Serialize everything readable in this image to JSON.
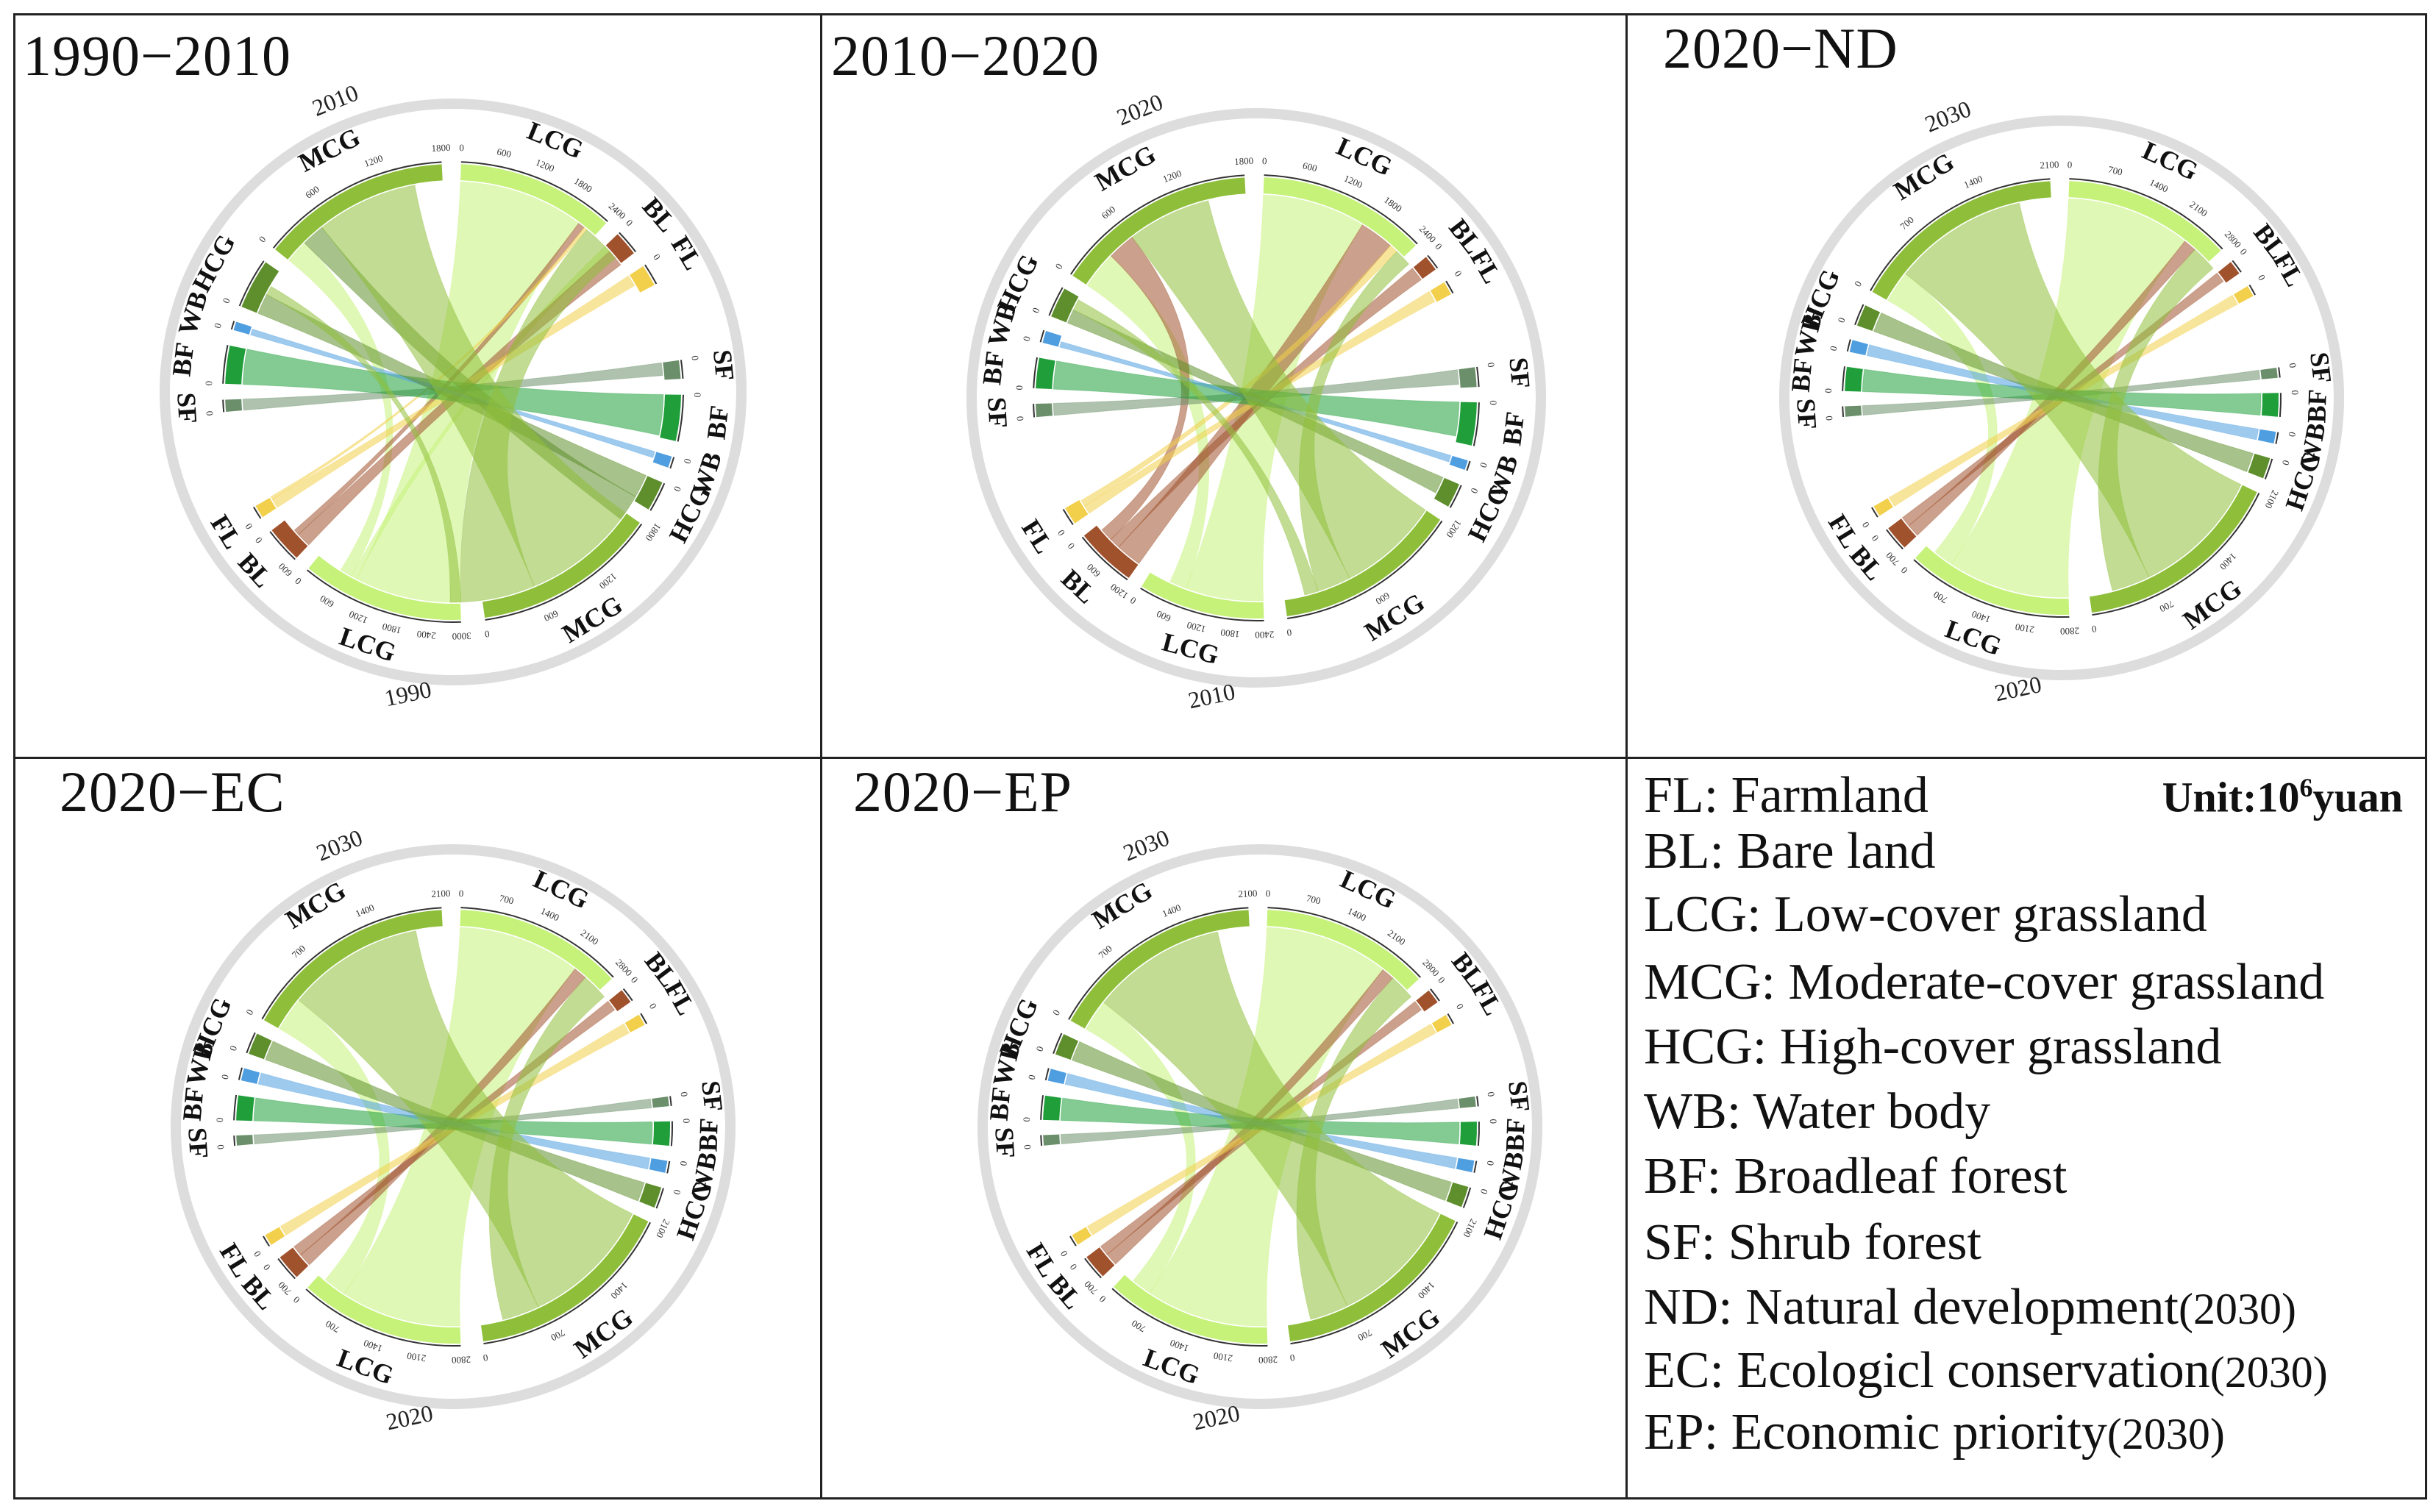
{
  "figure": {
    "unit_prefix": "Unit:10",
    "unit_exp": "6",
    "unit_suffix": "yuan"
  },
  "colors": {
    "FL": "#f2d04b",
    "BL": "#a0522d",
    "LCG": "#c6f27a",
    "MCG": "#8fbf3a",
    "HCG": "#5e8f2c",
    "WB": "#4f9ee0",
    "BF": "#1f9e3a",
    "SF": "#6b8f6a",
    "ring": "#dddddd"
  },
  "legend": [
    {
      "text": "FL: Farmland",
      "year": ""
    },
    {
      "text": "BL: Bare land",
      "year": ""
    },
    {
      "text": "LCG: Low-cover grassland",
      "year": ""
    },
    {
      "text": "MCG: Moderate-cover grassland",
      "year": ""
    },
    {
      "text": "HCG: High-cover grassland",
      "year": ""
    },
    {
      "text": "WB: Water body",
      "year": ""
    },
    {
      "text": "BF: Broadleaf forest",
      "year": ""
    },
    {
      "text": "SF: Shrub forest",
      "year": ""
    },
    {
      "text": "ND: Natural development",
      "year": "(2030)"
    },
    {
      "text": "EC: Ecologicl conservation",
      "year": "(2030)"
    },
    {
      "text": "EP: Economic priority",
      "year": "(2030)"
    }
  ],
  "chart_data": [
    {
      "type": "chord",
      "title": "1990−2010",
      "top_year": "2010",
      "bottom_year": "1990",
      "categories": [
        "LCG",
        "BL",
        "FL",
        "SF",
        "BF",
        "WB",
        "HCG",
        "MCG"
      ],
      "top_order": [
        "LCG",
        "BL",
        "FL",
        "SF",
        "BF",
        "WB",
        "HCG",
        "MCG"
      ],
      "top_values": {
        "LCG": 2550,
        "BL": 400,
        "FL": 350,
        "SF": 120,
        "BF": 380,
        "WB": 80,
        "HCG": 500,
        "MCG": 1900
      },
      "bottom_values": {
        "LCG": 3100,
        "BL": 700,
        "FL": 250,
        "SF": 160,
        "BF": 400,
        "WB": 100,
        "HCG": 260,
        "MCG": 1600
      },
      "top_ticks": {
        "LCG": [
          "0",
          "600",
          "1200",
          "1800",
          "2400"
        ],
        "MCG": [
          "0",
          "600",
          "1200",
          "1800"
        ],
        "BL": [
          "0"
        ],
        "FL": [
          "0"
        ],
        "SF": [
          "0"
        ],
        "BF": [
          "0"
        ],
        "WB": [
          "0"
        ],
        "HCG": [
          "0"
        ]
      },
      "bottom_ticks": {
        "LCG": [
          "3000",
          "2400",
          "1800",
          "1200",
          "600",
          "0"
        ],
        "MCG": [
          "1800",
          "1200",
          "600",
          "0"
        ],
        "BL": [
          "600",
          "0"
        ],
        "FL": [
          "0"
        ],
        "SF": [
          "0"
        ],
        "BF": [
          "0"
        ],
        "WB": [
          "0"
        ],
        "HCG": [
          "0"
        ]
      },
      "flows": [
        {
          "from": "LCG",
          "to": "LCG",
          "value": 2200
        },
        {
          "from": "LCG",
          "to": "BL",
          "value": 120
        },
        {
          "from": "LCG",
          "to": "MCG",
          "value": 250
        },
        {
          "from": "BL",
          "to": "BL",
          "value": 300
        },
        {
          "from": "BL",
          "to": "LCG",
          "value": 120
        },
        {
          "from": "FL",
          "to": "FL",
          "value": 200
        },
        {
          "from": "FL",
          "to": "LCG",
          "value": 60
        },
        {
          "from": "SF",
          "to": "SF",
          "value": 120
        },
        {
          "from": "BF",
          "to": "BF",
          "value": 380
        },
        {
          "from": "WB",
          "to": "WB",
          "value": 60
        },
        {
          "from": "HCG",
          "to": "HCG",
          "value": 220
        },
        {
          "from": "HCG",
          "to": "MCG",
          "value": 250
        },
        {
          "from": "MCG",
          "to": "MCG",
          "value": 1100
        },
        {
          "from": "MCG",
          "to": "LCG",
          "value": 700
        },
        {
          "from": "MCG",
          "to": "HCG",
          "value": 100
        }
      ]
    },
    {
      "type": "chord",
      "title": "2010−2020",
      "top_year": "2020",
      "bottom_year": "2010",
      "categories": [
        "LCG",
        "BL",
        "FL",
        "SF",
        "BF",
        "WB",
        "HCG",
        "MCG"
      ],
      "top_order": [
        "LCG",
        "BL",
        "FL",
        "MCG",
        "HCG",
        "WB",
        "BF",
        "SF"
      ],
      "top_values": {
        "LCG": 2700,
        "BL": 250,
        "FL": 220,
        "SF": 130,
        "BF": 300,
        "WB": 120,
        "HCG": 300,
        "MCG": 2000
      },
      "bottom_values": {
        "LCG": 2700,
        "BL": 1300,
        "FL": 380,
        "SF": 160,
        "BF": 350,
        "WB": 80,
        "HCG": 200,
        "MCG": 1500
      },
      "top_ticks": {
        "LCG": [
          "0",
          "600",
          "1200",
          "1800",
          "2400"
        ],
        "MCG": [
          "0",
          "600",
          "1200",
          "1800"
        ],
        "BL": [
          "0"
        ],
        "FL": [
          "0"
        ],
        "SF": [
          "0"
        ],
        "BF": [
          "0"
        ],
        "WB": [
          "0"
        ],
        "HCG": [
          "0"
        ]
      },
      "bottom_ticks": {
        "LCG": [
          "2400",
          "1800",
          "1200",
          "600",
          "0"
        ],
        "MCG": [
          "1200",
          "600",
          "0"
        ],
        "BL": [
          "1200",
          "600",
          "0"
        ],
        "FL": [
          "0"
        ],
        "SF": [
          "0"
        ],
        "BF": [
          "0"
        ],
        "WB": [
          "0"
        ],
        "HCG": [
          "0"
        ]
      },
      "flows": [
        {
          "from": "LCG",
          "to": "LCG",
          "value": 1800
        },
        {
          "from": "LCG",
          "to": "MCG",
          "value": 400
        },
        {
          "from": "BL",
          "to": "LCG",
          "value": 600
        },
        {
          "from": "BL",
          "to": "BL",
          "value": 250
        },
        {
          "from": "BL",
          "to": "MCG",
          "value": 300
        },
        {
          "from": "FL",
          "to": "FL",
          "value": 200
        },
        {
          "from": "FL",
          "to": "LCG",
          "value": 150
        },
        {
          "from": "SF",
          "to": "SF",
          "value": 130
        },
        {
          "from": "BF",
          "to": "BF",
          "value": 300
        },
        {
          "from": "WB",
          "to": "WB",
          "value": 60
        },
        {
          "from": "HCG",
          "to": "HCG",
          "value": 150
        },
        {
          "from": "MCG",
          "to": "MCG",
          "value": 900
        },
        {
          "from": "MCG",
          "to": "LCG",
          "value": 300
        },
        {
          "from": "MCG",
          "to": "HCG",
          "value": 120
        }
      ]
    },
    {
      "type": "chord",
      "title": "2020−ND",
      "top_year": "2030",
      "bottom_year": "2020",
      "categories": [
        "LCG",
        "BL",
        "FL",
        "SF",
        "BF",
        "WB",
        "HCG",
        "MCG"
      ],
      "top_order": [
        "LCG",
        "BL",
        "FL",
        "MCG",
        "HCG",
        "WB",
        "BF",
        "SF"
      ],
      "top_values": {
        "LCG": 3000,
        "BL": 250,
        "FL": 200,
        "SF": 120,
        "BF": 280,
        "WB": 140,
        "HCG": 250,
        "MCG": 2500
      },
      "bottom_values": {
        "LCG": 3000,
        "BL": 450,
        "FL": 200,
        "SF": 120,
        "BF": 280,
        "WB": 140,
        "HCG": 250,
        "MCG": 2500
      },
      "top_ticks": {
        "LCG": [
          "0",
          "700",
          "1400",
          "2100",
          "2800"
        ],
        "MCG": [
          "0",
          "700",
          "1400",
          "2100"
        ],
        "BL": [
          "0"
        ],
        "FL": [
          "0"
        ],
        "SF": [
          "0"
        ],
        "BF": [
          "0"
        ],
        "WB": [
          "0"
        ],
        "HCG": [
          "0"
        ]
      },
      "bottom_ticks": {
        "LCG": [
          "2800",
          "2100",
          "1400",
          "700",
          "0"
        ],
        "MCG": [
          "2100",
          "1400",
          "700",
          "0"
        ],
        "BL": [
          "700",
          "0"
        ],
        "FL": [
          "0"
        ],
        "SF": [
          "0"
        ],
        "BF": [
          "0"
        ],
        "WB": [
          "0"
        ],
        "HCG": [
          "0"
        ]
      },
      "flows": [
        {
          "from": "LCG",
          "to": "LCG",
          "value": 2400
        },
        {
          "from": "LCG",
          "to": "MCG",
          "value": 400
        },
        {
          "from": "BL",
          "to": "LCG",
          "value": 250
        },
        {
          "from": "BL",
          "to": "BL",
          "value": 200
        },
        {
          "from": "FL",
          "to": "FL",
          "value": 200
        },
        {
          "from": "SF",
          "to": "SF",
          "value": 120
        },
        {
          "from": "BF",
          "to": "BF",
          "value": 280
        },
        {
          "from": "WB",
          "to": "WB",
          "value": 140
        },
        {
          "from": "HCG",
          "to": "HCG",
          "value": 250
        },
        {
          "from": "MCG",
          "to": "MCG",
          "value": 1700
        },
        {
          "from": "MCG",
          "to": "LCG",
          "value": 500
        }
      ]
    },
    {
      "type": "chord",
      "title": "2020−EC",
      "top_year": "2030",
      "bottom_year": "2020",
      "categories": [
        "LCG",
        "BL",
        "FL",
        "SF",
        "BF",
        "WB",
        "HCG",
        "MCG"
      ],
      "top_order": [
        "LCG",
        "BL",
        "FL",
        "MCG",
        "HCG",
        "WB",
        "BF",
        "SF"
      ],
      "top_values": {
        "LCG": 2900,
        "BL": 250,
        "FL": 200,
        "SF": 120,
        "BF": 300,
        "WB": 150,
        "HCG": 260,
        "MCG": 2600
      },
      "bottom_values": {
        "LCG": 2900,
        "BL": 450,
        "FL": 200,
        "SF": 120,
        "BF": 300,
        "WB": 150,
        "HCG": 260,
        "MCG": 2600
      },
      "top_ticks": {
        "LCG": [
          "0",
          "700",
          "1400",
          "2100",
          "2800"
        ],
        "MCG": [
          "0",
          "700",
          "1400",
          "2100"
        ],
        "BL": [
          "0"
        ],
        "FL": [
          "0"
        ],
        "SF": [
          "0"
        ],
        "BF": [
          "0"
        ],
        "WB": [
          "0"
        ],
        "HCG": [
          "0"
        ]
      },
      "bottom_ticks": {
        "LCG": [
          "2800",
          "2100",
          "1400",
          "700",
          "0"
        ],
        "MCG": [
          "2100",
          "1400",
          "700",
          "0"
        ],
        "BL": [
          "700",
          "0"
        ],
        "FL": [
          "0"
        ],
        "SF": [
          "0"
        ],
        "BF": [
          "0"
        ],
        "WB": [
          "0"
        ],
        "HCG": [
          "0"
        ]
      },
      "flows": [
        {
          "from": "LCG",
          "to": "LCG",
          "value": 2300
        },
        {
          "from": "LCG",
          "to": "MCG",
          "value": 450
        },
        {
          "from": "BL",
          "to": "LCG",
          "value": 250
        },
        {
          "from": "BL",
          "to": "BL",
          "value": 200
        },
        {
          "from": "FL",
          "to": "FL",
          "value": 200
        },
        {
          "from": "SF",
          "to": "SF",
          "value": 120
        },
        {
          "from": "BF",
          "to": "BF",
          "value": 300
        },
        {
          "from": "WB",
          "to": "WB",
          "value": 150
        },
        {
          "from": "HCG",
          "to": "HCG",
          "value": 260
        },
        {
          "from": "MCG",
          "to": "MCG",
          "value": 1800
        },
        {
          "from": "MCG",
          "to": "LCG",
          "value": 500
        }
      ]
    },
    {
      "type": "chord",
      "title": "2020−EP",
      "top_year": "2030",
      "bottom_year": "2020",
      "categories": [
        "LCG",
        "BL",
        "FL",
        "SF",
        "BF",
        "WB",
        "HCG",
        "MCG"
      ],
      "top_order": [
        "LCG",
        "BL",
        "FL",
        "MCG",
        "HCG",
        "WB",
        "BF",
        "SF"
      ],
      "top_values": {
        "LCG": 3000,
        "BL": 260,
        "FL": 200,
        "SF": 120,
        "BF": 280,
        "WB": 140,
        "HCG": 250,
        "MCG": 2500
      },
      "bottom_values": {
        "LCG": 3000,
        "BL": 450,
        "FL": 200,
        "SF": 120,
        "BF": 280,
        "WB": 140,
        "HCG": 250,
        "MCG": 2500
      },
      "top_ticks": {
        "LCG": [
          "0",
          "700",
          "1400",
          "2100",
          "2800"
        ],
        "MCG": [
          "0",
          "700",
          "1400",
          "2100"
        ],
        "BL": [
          "0"
        ],
        "FL": [
          "0"
        ],
        "SF": [
          "0"
        ],
        "BF": [
          "0"
        ],
        "WB": [
          "0"
        ],
        "HCG": [
          "0"
        ]
      },
      "bottom_ticks": {
        "LCG": [
          "2800",
          "2100",
          "1400",
          "700",
          "0"
        ],
        "MCG": [
          "2100",
          "1400",
          "700",
          "0"
        ],
        "BL": [
          "700",
          "0"
        ],
        "FL": [
          "0"
        ],
        "SF": [
          "0"
        ],
        "BF": [
          "0"
        ],
        "WB": [
          "0"
        ],
        "HCG": [
          "0"
        ]
      },
      "flows": [
        {
          "from": "LCG",
          "to": "LCG",
          "value": 2400
        },
        {
          "from": "LCG",
          "to": "MCG",
          "value": 400
        },
        {
          "from": "BL",
          "to": "LCG",
          "value": 250
        },
        {
          "from": "BL",
          "to": "BL",
          "value": 200
        },
        {
          "from": "FL",
          "to": "FL",
          "value": 200
        },
        {
          "from": "SF",
          "to": "SF",
          "value": 120
        },
        {
          "from": "BF",
          "to": "BF",
          "value": 280
        },
        {
          "from": "WB",
          "to": "WB",
          "value": 140
        },
        {
          "from": "HCG",
          "to": "HCG",
          "value": 250
        },
        {
          "from": "MCG",
          "to": "MCG",
          "value": 1700
        },
        {
          "from": "MCG",
          "to": "LCG",
          "value": 500
        }
      ]
    }
  ]
}
